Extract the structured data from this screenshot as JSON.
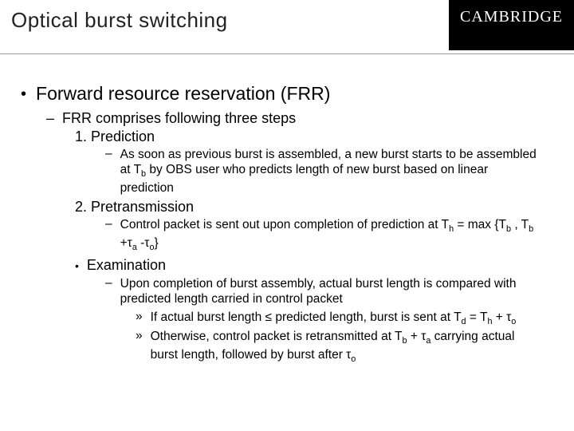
{
  "header": {
    "title": "Optical burst switching",
    "logo": "CAMBRIDGE"
  },
  "main": {
    "bullet_label": "Forward resource reservation (FRR)",
    "sub1_label": "FRR comprises following three steps",
    "step1": {
      "label": "1.  Prediction",
      "detail": "As soon as previous burst is assembled, a new burst starts to be assembled at T"
    },
    "step1_b": " by OBS user who predicts length of new burst based on linear prediction",
    "step2": {
      "label": "2.  Pretransmission",
      "detail_a": "Control packet is sent out upon completion of prediction at T",
      "detail_b": " = max {T",
      "detail_c": " , T",
      "detail_d": " +τ",
      "detail_e": " -τ",
      "detail_f": "}"
    },
    "step3": {
      "label": "Examination",
      "detail1": "Upon completion of burst assembly, actual burst length is compared with predicted length carried in control packet",
      "detail2_a": "If actual burst length ≤ predicted length, burst is sent at T",
      "detail2_b": " = T",
      "detail2_c": " + τ",
      "detail3_a": "Otherwise, control packet is retransmitted at T",
      "detail3_b": " + τ",
      "detail3_c": " carrying actual burst length, followed by burst after τ"
    }
  }
}
